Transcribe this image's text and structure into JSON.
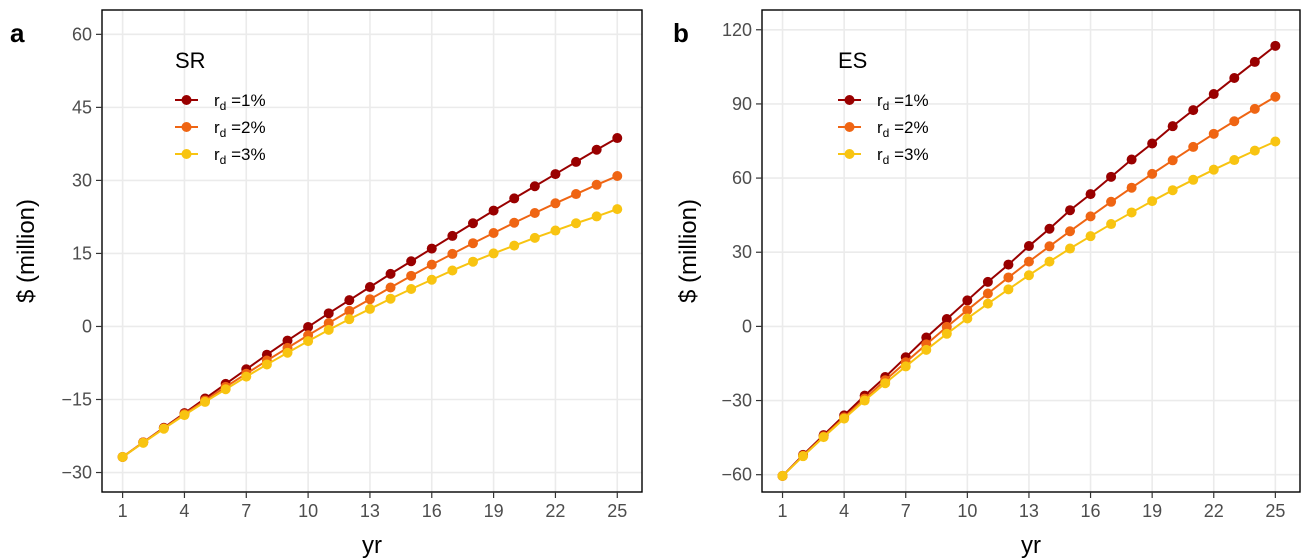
{
  "chart_data": [
    {
      "type": "line",
      "panel_label": "a",
      "legend_title": "SR",
      "legend_position": "top-left",
      "grid": true,
      "xlabel": "yr",
      "ylabel": "$ (million)",
      "xlim": [
        0,
        26.2
      ],
      "ylim": [
        -34,
        65
      ],
      "xticks": [
        1,
        4,
        7,
        10,
        13,
        16,
        19,
        22,
        25
      ],
      "yticks": [
        -30,
        -15,
        0,
        15,
        30,
        45,
        60
      ],
      "ytick_labels": [
        "−30",
        "−15",
        "0",
        "15",
        "30",
        "45",
        "60"
      ],
      "x": [
        1,
        2,
        3,
        4,
        5,
        6,
        7,
        8,
        9,
        10,
        11,
        12,
        13,
        14,
        15,
        16,
        17,
        18,
        19,
        20,
        21,
        22,
        23,
        24,
        25
      ],
      "series": [
        {
          "label_main": "r",
          "label_sub": "d",
          "label_rest": " =1%",
          "color": "#990000",
          "values": [
            -26.8,
            -23.8,
            -20.8,
            -17.8,
            -14.8,
            -11.8,
            -8.8,
            -5.8,
            -2.9,
            -0.1,
            2.7,
            5.4,
            8.1,
            10.8,
            13.4,
            16.0,
            18.6,
            21.2,
            23.8,
            26.3,
            28.8,
            31.3,
            33.8,
            36.3,
            38.7
          ]
        },
        {
          "label_main": "r",
          "label_sub": "d",
          "label_rest": " =2%",
          "color": "#ef6513",
          "values": [
            -26.8,
            -23.8,
            -20.9,
            -18.0,
            -15.2,
            -12.4,
            -9.7,
            -7.0,
            -4.4,
            -1.8,
            0.7,
            3.2,
            5.6,
            8.0,
            10.4,
            12.7,
            14.9,
            17.1,
            19.2,
            21.3,
            23.3,
            25.3,
            27.2,
            29.1,
            30.9
          ]
        },
        {
          "label_main": "r",
          "label_sub": "d",
          "label_rest": " =3%",
          "color": "#f8c411",
          "values": [
            -26.8,
            -23.9,
            -21.0,
            -18.2,
            -15.5,
            -12.9,
            -10.3,
            -7.8,
            -5.4,
            -3.0,
            -0.7,
            1.5,
            3.6,
            5.7,
            7.7,
            9.6,
            11.5,
            13.3,
            15.0,
            16.6,
            18.2,
            19.7,
            21.2,
            22.6,
            24.1
          ]
        }
      ]
    },
    {
      "type": "line",
      "panel_label": "b",
      "legend_title": "ES",
      "legend_position": "top-left",
      "grid": true,
      "xlabel": "yr",
      "ylabel": "$ (million)",
      "xlim": [
        0,
        26.2
      ],
      "ylim": [
        -67,
        128
      ],
      "xticks": [
        1,
        4,
        7,
        10,
        13,
        16,
        19,
        22,
        25
      ],
      "yticks": [
        -60,
        -30,
        0,
        30,
        60,
        90,
        120
      ],
      "ytick_labels": [
        "−60",
        "−30",
        "0",
        "30",
        "60",
        "90",
        "120"
      ],
      "x": [
        1,
        2,
        3,
        4,
        5,
        6,
        7,
        8,
        9,
        10,
        11,
        12,
        13,
        14,
        15,
        16,
        17,
        18,
        19,
        20,
        21,
        22,
        23,
        24,
        25
      ],
      "series": [
        {
          "label_main": "r",
          "label_sub": "d",
          "label_rest": " =1%",
          "color": "#990000",
          "values": [
            -60.5,
            -52.0,
            -44.0,
            -36.0,
            -28.0,
            -20.5,
            -12.5,
            -4.5,
            3.0,
            10.5,
            18.0,
            25.0,
            32.5,
            39.5,
            47.0,
            53.5,
            60.5,
            67.5,
            74.0,
            81.0,
            87.5,
            94.0,
            100.5,
            107.0,
            113.5
          ]
        },
        {
          "label_main": "r",
          "label_sub": "d",
          "label_rest": " =2%",
          "color": "#ef6513",
          "values": [
            -60.5,
            -52.3,
            -44.5,
            -36.8,
            -29.2,
            -21.8,
            -14.5,
            -7.3,
            -0.2,
            6.6,
            13.3,
            19.8,
            26.2,
            32.4,
            38.5,
            44.5,
            50.4,
            56.1,
            61.7,
            67.2,
            72.6,
            77.9,
            83.0,
            88.0,
            92.9
          ]
        },
        {
          "label_main": "r",
          "label_sub": "d",
          "label_rest": " =3%",
          "color": "#f8c411",
          "values": [
            -60.5,
            -52.5,
            -44.8,
            -37.3,
            -30.0,
            -23.0,
            -16.2,
            -9.5,
            -3.0,
            3.2,
            9.2,
            15.0,
            20.7,
            26.2,
            31.5,
            36.5,
            41.4,
            46.1,
            50.7,
            55.1,
            59.3,
            63.4,
            67.3,
            71.1,
            74.8
          ]
        }
      ]
    }
  ]
}
